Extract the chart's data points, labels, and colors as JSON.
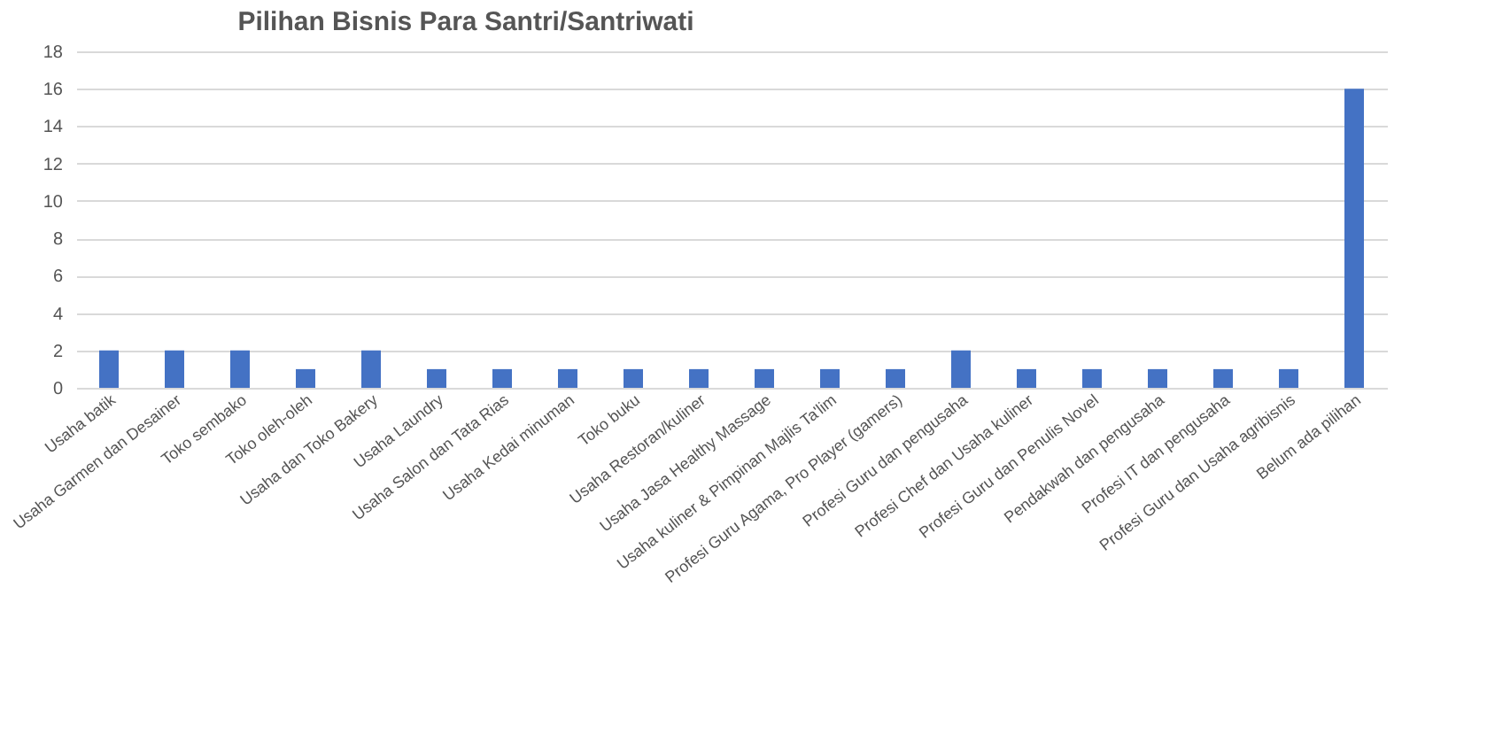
{
  "chart_data": {
    "type": "bar",
    "title": "Pilihan Bisnis Para Santri/Santriwati",
    "categories": [
      "Usaha batik",
      "Usaha Garmen dan Desainer",
      "Toko sembako",
      "Toko oleh-oleh",
      "Usaha dan Toko Bakery",
      "Usaha Laundry",
      "Usaha Salon dan Tata Rias",
      "Usaha Kedai minuman",
      "Toko buku",
      "Usaha Restoran/kuliner",
      "Usaha Jasa Healthy Massage",
      "Usaha kuliner & Pimpinan Majlis Ta'lim",
      "Profesi Guru Agama, Pro Player (gamers)",
      "Profesi Guru dan pengusaha",
      "Profesi Chef dan Usaha kuliner",
      "Profesi Guru dan  Penulis Novel",
      "Pendakwah dan pengusaha",
      "Profesi IT dan pengusaha",
      "Profesi Guru dan Usaha agribisnis",
      "Belum ada pilihan"
    ],
    "values": [
      2,
      2,
      2,
      1,
      2,
      1,
      1,
      1,
      1,
      1,
      1,
      1,
      1,
      2,
      1,
      1,
      1,
      1,
      1,
      16
    ],
    "color": "#4472c4",
    "ylim": [
      0,
      18
    ],
    "yticks": [
      0,
      2,
      4,
      6,
      8,
      10,
      12,
      14,
      16,
      18
    ],
    "grid": "y"
  }
}
